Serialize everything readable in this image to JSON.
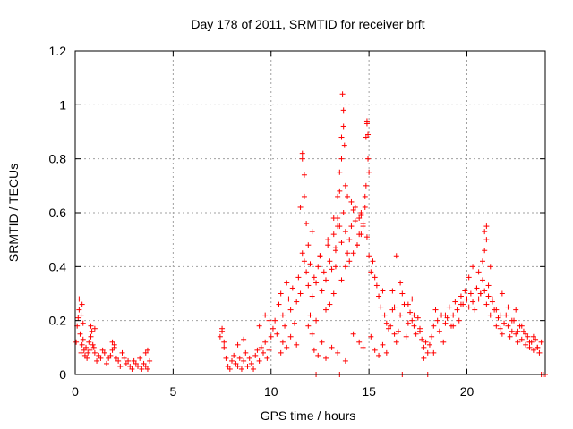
{
  "chart_data": {
    "type": "scatter",
    "title": "Day 178 of 2011, SRMTID for receiver brft",
    "xlabel": "GPS time / hours",
    "ylabel": "SRMTID / TECUs",
    "xlim": [
      0,
      24
    ],
    "ylim": [
      0,
      1.2
    ],
    "xticks": [
      0,
      5,
      10,
      15,
      20
    ],
    "xtick_labels": [
      "0",
      "5",
      "10",
      "15",
      "20"
    ],
    "yticks": [
      0,
      0.2,
      0.4,
      0.6,
      0.8,
      1.0,
      1.2
    ],
    "ytick_labels": [
      "0",
      "0.2",
      "0.4",
      "0.6",
      "0.8",
      "1",
      "1.2"
    ],
    "grid": true,
    "marker": "+",
    "series": [
      {
        "name": "SRMTID",
        "color": "#ff0000",
        "x": [
          0.05,
          0.1,
          0.15,
          0.2,
          0.25,
          0.3,
          0.35,
          0.4,
          0.45,
          0.5,
          0.55,
          0.6,
          0.65,
          0.7,
          0.75,
          0.8,
          0.85,
          0.9,
          0.95,
          1.0,
          1.1,
          1.2,
          1.3,
          1.4,
          1.5,
          1.6,
          1.7,
          1.8,
          1.9,
          2.0,
          2.1,
          2.2,
          2.3,
          2.4,
          2.5,
          2.6,
          2.7,
          2.8,
          2.9,
          3.0,
          3.1,
          3.2,
          3.3,
          3.4,
          3.5,
          3.6,
          3.7,
          3.8,
          0.2,
          0.3,
          0.35,
          0.4,
          0.8,
          1.0,
          1.9,
          2.0,
          3.6,
          3.7,
          7.4,
          7.5,
          7.6,
          7.7,
          7.8,
          7.9,
          8.0,
          8.1,
          8.2,
          8.3,
          8.4,
          8.5,
          8.6,
          8.7,
          8.8,
          8.9,
          9.0,
          9.1,
          9.2,
          9.3,
          9.4,
          9.5,
          9.6,
          9.7,
          9.8,
          9.9,
          10.0,
          7.5,
          7.6,
          8.3,
          8.6,
          9.4,
          9.7,
          9.9,
          10.1,
          10.2,
          10.3,
          10.4,
          10.5,
          10.6,
          10.7,
          10.8,
          10.9,
          11.0,
          11.1,
          11.2,
          11.3,
          11.4,
          11.5,
          11.6,
          11.7,
          11.8,
          11.9,
          12.0,
          12.1,
          12.2,
          12.3,
          12.4,
          12.5,
          12.6,
          12.7,
          12.8,
          12.9,
          13.0,
          13.1,
          13.2,
          13.3,
          13.4,
          13.5,
          13.6,
          13.7,
          13.8,
          13.9,
          14.0,
          14.1,
          14.2,
          14.3,
          14.4,
          14.5,
          14.6,
          14.7,
          14.8,
          14.9,
          15.0,
          15.1,
          15.2,
          15.3,
          15.4,
          15.5,
          15.6,
          15.7,
          15.8,
          15.9,
          16.0,
          11.6,
          11.6,
          11.7,
          11.7,
          11.8,
          11.9,
          11.5,
          12.1,
          12.5,
          12.9,
          13.2,
          13.4,
          13.5,
          13.6,
          13.6,
          13.65,
          13.7,
          13.7,
          13.75,
          13.8,
          13.5,
          13.4,
          13.3,
          13.3,
          13.9,
          14.1,
          14.3,
          14.5,
          14.6,
          14.7,
          14.8,
          14.85,
          14.9,
          14.9,
          14.95,
          15.0,
          14.95,
          14.85,
          14.6,
          14.4,
          14.2,
          14.0,
          13.8,
          13.6,
          13.2,
          13.0,
          12.8,
          12.3,
          12.0,
          11.9,
          10.5,
          10.6,
          10.8,
          11.0,
          11.3,
          12.1,
          12.2,
          12.4,
          12.6,
          12.8,
          13.1,
          13.4,
          13.8,
          14.2,
          14.5,
          14.7,
          15.1,
          15.3,
          15.5,
          15.7,
          15.9,
          16.1,
          16.2,
          16.3,
          16.4,
          16.5,
          16.6,
          16.7,
          16.8,
          16.9,
          17.0,
          17.1,
          17.2,
          17.3,
          17.4,
          17.5,
          17.6,
          17.7,
          17.8,
          17.9,
          18.0,
          18.1,
          18.2,
          18.3,
          18.4,
          18.5,
          18.6,
          18.7,
          18.8,
          18.9,
          19.0,
          19.1,
          19.2,
          19.3,
          19.4,
          19.5,
          19.6,
          19.7,
          19.8,
          19.9,
          20.0,
          20.1,
          20.2,
          20.3,
          20.4,
          20.5,
          20.6,
          20.7,
          20.8,
          20.9,
          21.0,
          21.1,
          21.2,
          21.3,
          21.4,
          21.5,
          21.6,
          21.7,
          21.8,
          21.9,
          22.0,
          22.1,
          22.2,
          22.3,
          22.4,
          22.5,
          22.6,
          22.7,
          22.8,
          22.9,
          23.0,
          23.1,
          23.2,
          23.3,
          23.4,
          23.5,
          23.6,
          23.7,
          23.8,
          16.2,
          16.3,
          16.4,
          16.6,
          17.0,
          17.2,
          17.3,
          17.6,
          17.8,
          18.3,
          18.9,
          19.3,
          19.7,
          20.0,
          20.1,
          20.3,
          20.5,
          20.6,
          20.7,
          20.8,
          20.9,
          20.9,
          21.0,
          21.0,
          21.1,
          21.2,
          21.3,
          21.5,
          21.7,
          21.8,
          22.1,
          22.3,
          22.5,
          22.6,
          22.8,
          23.0,
          23.2,
          23.4,
          23.6,
          12.3,
          13.5,
          16.7,
          18.0,
          23.8,
          23.9,
          24.0
        ],
        "y": [
          0.12,
          0.18,
          0.21,
          0.24,
          0.15,
          0.08,
          0.11,
          0.13,
          0.09,
          0.07,
          0.1,
          0.06,
          0.08,
          0.12,
          0.09,
          0.14,
          0.16,
          0.11,
          0.1,
          0.08,
          0.05,
          0.07,
          0.06,
          0.09,
          0.08,
          0.04,
          0.06,
          0.07,
          0.09,
          0.1,
          0.06,
          0.05,
          0.03,
          0.08,
          0.06,
          0.04,
          0.05,
          0.03,
          0.02,
          0.05,
          0.04,
          0.03,
          0.06,
          0.02,
          0.04,
          0.03,
          0.02,
          0.05,
          0.28,
          0.22,
          0.26,
          0.19,
          0.18,
          0.17,
          0.12,
          0.11,
          0.08,
          0.09,
          0.14,
          0.16,
          0.1,
          0.06,
          0.03,
          0.02,
          0.05,
          0.07,
          0.04,
          0.03,
          0.06,
          0.02,
          0.05,
          0.08,
          0.03,
          0.06,
          0.04,
          0.02,
          0.07,
          0.09,
          0.05,
          0.1,
          0.08,
          0.12,
          0.06,
          0.09,
          0.14,
          0.17,
          0.12,
          0.11,
          0.13,
          0.18,
          0.22,
          0.2,
          0.17,
          0.2,
          0.15,
          0.26,
          0.3,
          0.22,
          0.18,
          0.34,
          0.28,
          0.24,
          0.32,
          0.19,
          0.27,
          0.36,
          0.3,
          0.45,
          0.42,
          0.38,
          0.33,
          0.41,
          0.29,
          0.36,
          0.34,
          0.4,
          0.44,
          0.31,
          0.38,
          0.35,
          0.48,
          0.42,
          0.39,
          0.52,
          0.47,
          0.58,
          0.55,
          0.49,
          0.6,
          0.53,
          0.45,
          0.5,
          0.55,
          0.61,
          0.57,
          0.48,
          0.52,
          0.59,
          0.56,
          0.62,
          0.51,
          0.44,
          0.38,
          0.42,
          0.36,
          0.33,
          0.29,
          0.25,
          0.31,
          0.22,
          0.19,
          0.17,
          0.82,
          0.8,
          0.74,
          0.66,
          0.56,
          0.48,
          0.62,
          0.53,
          0.44,
          0.5,
          0.58,
          0.66,
          0.75,
          0.8,
          0.88,
          1.04,
          0.98,
          0.92,
          0.85,
          0.7,
          0.68,
          0.55,
          0.46,
          0.4,
          0.66,
          0.64,
          0.62,
          0.58,
          0.6,
          0.55,
          0.66,
          0.88,
          0.94,
          0.93,
          0.89,
          0.75,
          0.8,
          0.7,
          0.52,
          0.48,
          0.45,
          0.42,
          0.4,
          0.35,
          0.3,
          0.26,
          0.24,
          0.2,
          0.22,
          0.18,
          0.08,
          0.12,
          0.1,
          0.14,
          0.11,
          0.15,
          0.09,
          0.07,
          0.12,
          0.06,
          0.1,
          0.08,
          0.05,
          0.15,
          0.12,
          0.1,
          0.14,
          0.09,
          0.07,
          0.11,
          0.08,
          0.18,
          0.24,
          0.15,
          0.12,
          0.16,
          0.22,
          0.3,
          0.26,
          0.14,
          0.19,
          0.23,
          0.28,
          0.18,
          0.15,
          0.21,
          0.17,
          0.13,
          0.1,
          0.12,
          0.08,
          0.11,
          0.14,
          0.18,
          0.24,
          0.2,
          0.16,
          0.22,
          0.12,
          0.19,
          0.21,
          0.25,
          0.18,
          0.22,
          0.27,
          0.24,
          0.2,
          0.29,
          0.26,
          0.31,
          0.28,
          0.25,
          0.3,
          0.27,
          0.24,
          0.32,
          0.28,
          0.3,
          0.35,
          0.31,
          0.26,
          0.29,
          0.22,
          0.27,
          0.24,
          0.18,
          0.21,
          0.17,
          0.15,
          0.19,
          0.22,
          0.18,
          0.14,
          0.16,
          0.2,
          0.15,
          0.12,
          0.18,
          0.13,
          0.16,
          0.11,
          0.14,
          0.1,
          0.12,
          0.09,
          0.13,
          0.1,
          0.08,
          0.12,
          0.31,
          0.25,
          0.44,
          0.34,
          0.26,
          0.2,
          0.22,
          0.16,
          0.06,
          0.08,
          0.22,
          0.18,
          0.26,
          0.28,
          0.36,
          0.4,
          0.32,
          0.38,
          0.3,
          0.42,
          0.46,
          0.53,
          0.5,
          0.55,
          0.33,
          0.4,
          0.28,
          0.24,
          0.22,
          0.3,
          0.25,
          0.2,
          0.24,
          0.16,
          0.18,
          0.15,
          0.12,
          0.14,
          0.1,
          0.0,
          0.0,
          0.0,
          0.0,
          0.0,
          0.0,
          0.0
        ]
      }
    ]
  }
}
